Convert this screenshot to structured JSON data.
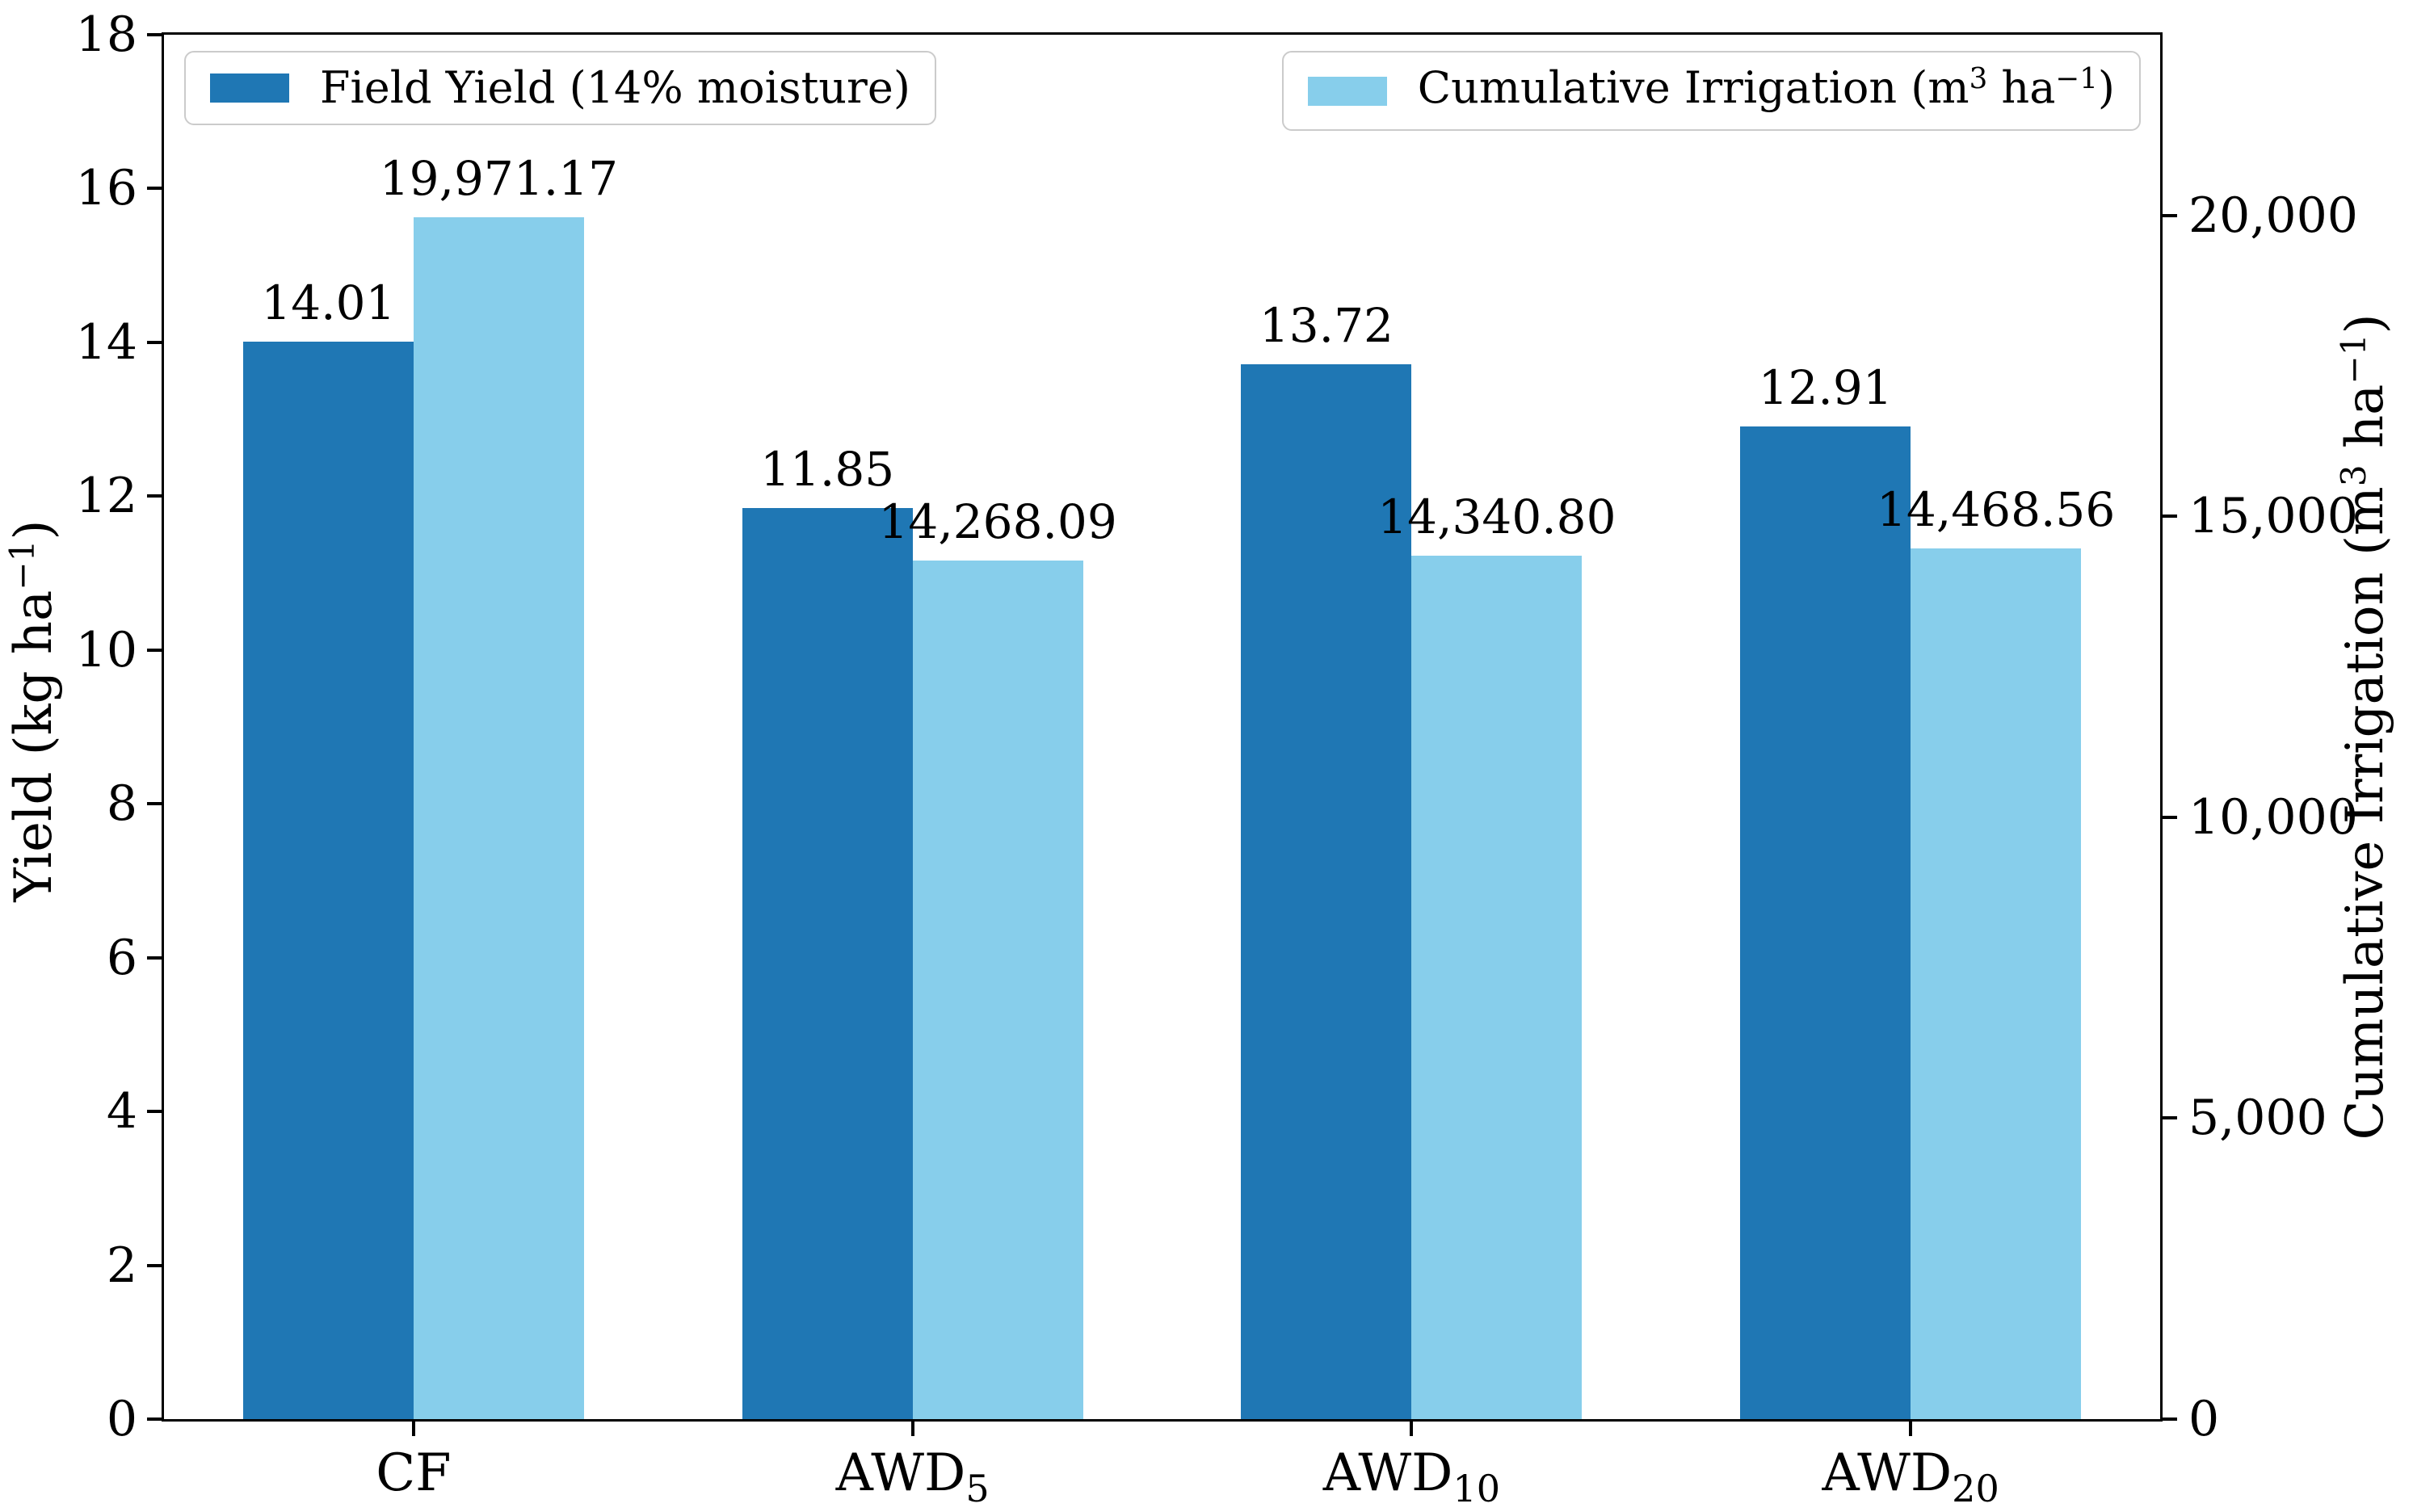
{
  "figure": {
    "background": "#ffffff",
    "spine_color": "#000000",
    "text_color": "#000000",
    "legend_border_color": "#cbcbcb"
  },
  "legend": {
    "field_yield": {
      "label": "Field Yield (14% moisture)",
      "swatch_color": "#1f77b4"
    },
    "cumulative_irrigation": {
      "label": "Cumulative Irrigation (m³ ha⁻¹)",
      "label_pre": "Cumulative Irrigation (m",
      "label_sup1": "3",
      "label_mid": " ha",
      "label_sup2": "−1",
      "label_post": ")",
      "swatch_color": "#87ceeb"
    }
  },
  "chart_data": {
    "type": "bar",
    "title": "",
    "grid": false,
    "legend_position": "inside plot: top-left (yield) and top-right (irrigation)",
    "categories": [
      "CF",
      "AWD5",
      "AWD10",
      "AWD20"
    ],
    "categories_display": [
      {
        "base": "CF",
        "sub": ""
      },
      {
        "base": "AWD",
        "sub": "5"
      },
      {
        "base": "AWD",
        "sub": "10"
      },
      {
        "base": "AWD",
        "sub": "20"
      }
    ],
    "series": [
      {
        "name": "Field Yield (14% moisture)",
        "axis": "left",
        "color": "#1f77b4",
        "values": [
          14.01,
          11.85,
          13.72,
          12.91
        ],
        "data_labels": [
          "14.01",
          "11.85",
          "13.72",
          "12.91"
        ]
      },
      {
        "name": "Cumulative Irrigation (m³ ha⁻¹)",
        "axis": "right",
        "color": "#87ceeb",
        "values": [
          19971.17,
          14268.09,
          14340.8,
          14468.56
        ],
        "data_labels": [
          "19,971.17",
          "14,268.09",
          "14,340.80",
          "14,468.56"
        ]
      }
    ],
    "left_axis": {
      "label": "Yield (kg ha⁻¹)",
      "label_pre": "Yield (kg ha",
      "label_sup": "−1",
      "label_post": ")",
      "lim": [
        0,
        18
      ],
      "ticks": [
        0,
        2,
        4,
        6,
        8,
        10,
        12,
        14,
        16,
        18
      ],
      "tick_labels": [
        "0",
        "2",
        "4",
        "6",
        "8",
        "10",
        "12",
        "14",
        "16",
        "18"
      ]
    },
    "right_axis": {
      "label": "Cumulative Irrigation (m³ ha⁻¹)",
      "label_pre": "Cumulative Irrigation (m",
      "label_sup1": "3",
      "label_mid": " ha",
      "label_sup2": "−1",
      "label_post": ")",
      "lim": [
        0,
        23000
      ],
      "ticks": [
        0,
        5000,
        10000,
        15000,
        20000
      ],
      "tick_labels": [
        "0",
        "5,000",
        "10,000",
        "15,000",
        "20,000"
      ]
    }
  }
}
